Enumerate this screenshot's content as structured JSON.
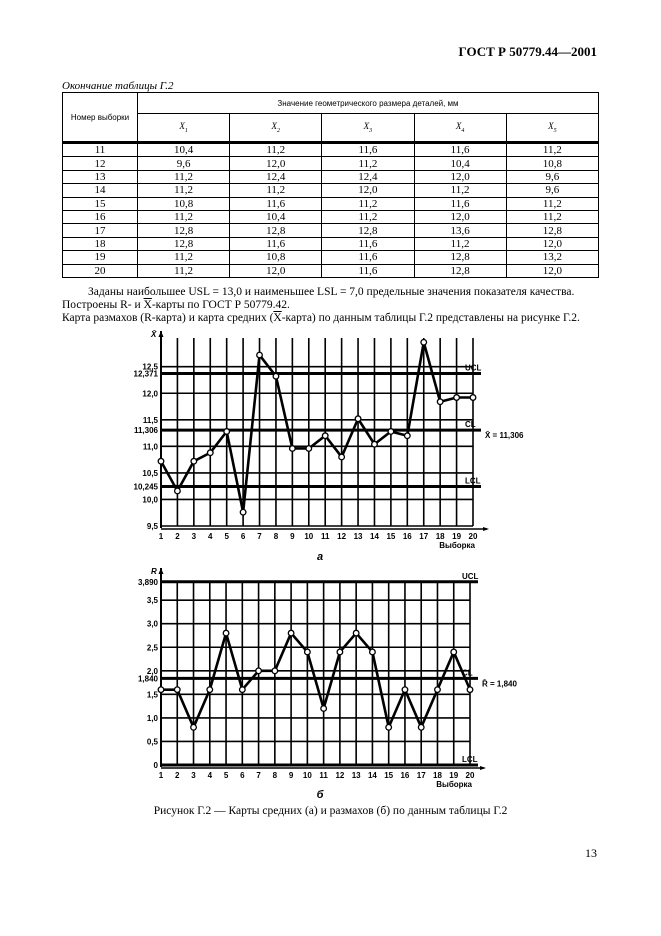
{
  "header": {
    "doc_code": "ГОСТ Р 50779.44—2001"
  },
  "table": {
    "caption": "Окончание таблицы Г.2",
    "col_sample": "Номер выборки",
    "col_group": "Значение геометрического размера деталей, мм",
    "subcols": [
      {
        "x": "X",
        "i": "1"
      },
      {
        "x": "X",
        "i": "2"
      },
      {
        "x": "X",
        "i": "3"
      },
      {
        "x": "X",
        "i": "4"
      },
      {
        "x": "X",
        "i": "5"
      }
    ],
    "rows": [
      [
        "11",
        "10,4",
        "11,2",
        "11,6",
        "11,6",
        "11,2"
      ],
      [
        "12",
        "9,6",
        "12,0",
        "11,2",
        "10,4",
        "10,8"
      ],
      [
        "13",
        "11,2",
        "12,4",
        "12,4",
        "12,0",
        "9,6"
      ],
      [
        "14",
        "11,2",
        "11,2",
        "12,0",
        "11,2",
        "9,6"
      ],
      [
        "15",
        "10,8",
        "11,6",
        "11,2",
        "11,6",
        "11,2"
      ],
      [
        "16",
        "11,2",
        "10,4",
        "11,2",
        "12,0",
        "11,2"
      ],
      [
        "17",
        "12,8",
        "12,8",
        "12,8",
        "13,6",
        "12,8"
      ],
      [
        "18",
        "12,8",
        "11,6",
        "11,6",
        "11,2",
        "12,0"
      ],
      [
        "19",
        "11,2",
        "10,8",
        "11,6",
        "12,8",
        "13,2"
      ],
      [
        "20",
        "11,2",
        "12,0",
        "11,6",
        "12,8",
        "12,0"
      ]
    ]
  },
  "text": {
    "line1": "Заданы наибольшее USL = 13,0 и наименьшее LSL = 7,0 предельные значения показателя качества.",
    "line2_a": "Построены R- и ",
    "line2_x": "X",
    "line2_b": "-карты по ГОСТ Р 50779.42.",
    "line3_a": "Карта размахов (R-карта) и карта средних (",
    "line3_x": "X",
    "line3_b": "-карта) по данным таблицы Г.2 представлены на рисунке Г.2."
  },
  "chart_data": [
    {
      "type": "line",
      "sublabel": "а",
      "ylabel": "X̄",
      "xlabel": "Выборка",
      "x": [
        1,
        2,
        3,
        4,
        5,
        6,
        7,
        8,
        9,
        10,
        11,
        12,
        13,
        14,
        15,
        16,
        17,
        18,
        19,
        20
      ],
      "values": [
        10.72,
        10.16,
        10.72,
        10.88,
        11.28,
        9.76,
        12.72,
        12.32,
        10.96,
        10.96,
        11.2,
        10.8,
        11.52,
        11.04,
        11.28,
        11.2,
        12.96,
        11.84,
        11.92,
        11.92
      ],
      "yticks": [
        9.5,
        10.0,
        10.5,
        11.0,
        11.5,
        12.0,
        12.5
      ],
      "ytick_labels": [
        "9,5",
        "10,0",
        "10,5",
        "11,0",
        "11,5",
        "12,0",
        "12,5"
      ],
      "limits": [
        {
          "name": "UCL",
          "value": 12.371,
          "label": "12,371"
        },
        {
          "name": "CL",
          "value": 11.306,
          "label": "11,306",
          "annotation": "X̄ = 11,306"
        },
        {
          "name": "LCL",
          "value": 10.245,
          "label": "10,245"
        }
      ],
      "ylim": [
        9.5,
        13.0
      ],
      "grid": true
    },
    {
      "type": "line",
      "sublabel": "б",
      "ylabel": "R",
      "xlabel": "Выборка",
      "x": [
        1,
        2,
        3,
        4,
        5,
        6,
        7,
        8,
        9,
        10,
        11,
        12,
        13,
        14,
        15,
        16,
        17,
        18,
        19,
        20
      ],
      "values": [
        1.6,
        1.6,
        0.8,
        1.6,
        2.8,
        1.6,
        2.0,
        2.0,
        2.8,
        2.4,
        1.2,
        2.4,
        2.8,
        2.4,
        0.8,
        1.6,
        0.8,
        1.6,
        2.4,
        1.6
      ],
      "yticks": [
        0,
        0.5,
        1.0,
        1.5,
        2.0,
        2.5,
        3.0,
        3.5
      ],
      "ytick_labels": [
        "0",
        "0,5",
        "1,0",
        "1,5",
        "2,0",
        "2,5",
        "3,0",
        "3,5"
      ],
      "limits": [
        {
          "name": "UCL",
          "value": 3.89,
          "label": "3,890"
        },
        {
          "name": "CL",
          "value": 1.84,
          "label": "1,840",
          "annotation": "R̄ = 1,840"
        },
        {
          "name": "LCL",
          "value": 0,
          "label": ""
        }
      ],
      "ylim": [
        0,
        3.9
      ],
      "grid": true
    }
  ],
  "figure": {
    "caption": "Рисунок Г.2 — Карты средних (а) и размахов (б) по данным таблицы Г.2"
  },
  "page_number": "13"
}
